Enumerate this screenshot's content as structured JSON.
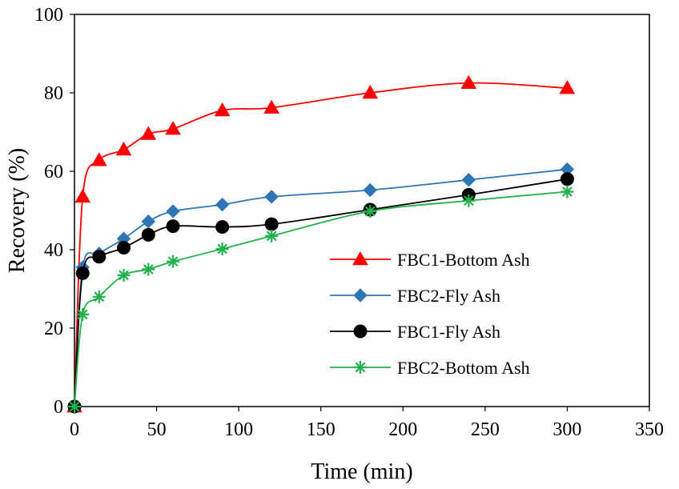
{
  "chart_data": {
    "type": "line",
    "xlabel": "Time (min)",
    "ylabel": "Recovery (%)",
    "xlim": [
      0,
      350
    ],
    "ylim": [
      0,
      100
    ],
    "xticks": [
      0,
      50,
      100,
      150,
      200,
      250,
      300,
      350
    ],
    "yticks": [
      0,
      20,
      40,
      60,
      80,
      100
    ],
    "grid": false,
    "legend": "center-right",
    "series": [
      {
        "name": "FBC1-Bottom Ash",
        "color": "#ff0000",
        "marker": "triangle",
        "x": [
          0,
          5,
          15,
          30,
          45,
          60,
          90,
          120,
          180,
          240,
          300
        ],
        "y": [
          0,
          53.5,
          62.8,
          65.5,
          69.5,
          70.8,
          75.5,
          76.2,
          80.0,
          82.5,
          81.2
        ]
      },
      {
        "name": "FBC2-Fly Ash",
        "color": "#2e75b6",
        "marker": "diamond",
        "x": [
          0,
          5,
          15,
          30,
          45,
          60,
          90,
          120,
          180,
          240,
          300
        ],
        "y": [
          0,
          35.5,
          39.0,
          42.8,
          47.2,
          49.8,
          51.5,
          53.5,
          55.2,
          57.8,
          60.5
        ]
      },
      {
        "name": "FBC1-Fly Ash",
        "color": "#000000",
        "marker": "circle",
        "x": [
          0,
          5,
          15,
          30,
          45,
          60,
          90,
          120,
          180,
          240,
          300
        ],
        "y": [
          0,
          34.0,
          38.2,
          40.5,
          43.8,
          46.0,
          45.8,
          46.5,
          50.2,
          54.0,
          58.0
        ]
      },
      {
        "name": "FBC2-Bottom Ash",
        "color": "#22b14c",
        "marker": "asterisk",
        "x": [
          0,
          5,
          15,
          30,
          45,
          60,
          90,
          120,
          180,
          240,
          300
        ],
        "y": [
          0,
          23.5,
          28.0,
          33.5,
          35.0,
          37.0,
          40.2,
          43.5,
          49.8,
          52.5,
          54.8
        ]
      }
    ]
  }
}
